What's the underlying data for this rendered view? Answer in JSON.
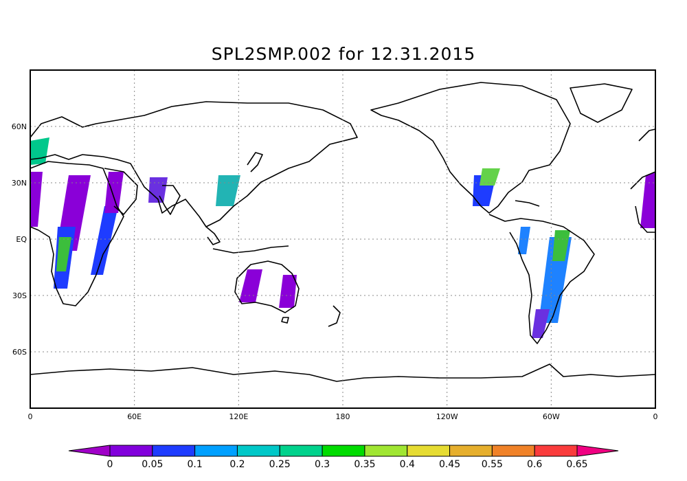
{
  "title": "SPL2SMP.002 for 12.31.2015",
  "map": {
    "lon_ticks": [
      {
        "lon": 0,
        "label": "0"
      },
      {
        "lon": 60,
        "label": "60E"
      },
      {
        "lon": 120,
        "label": "120E"
      },
      {
        "lon": 180,
        "label": "180"
      },
      {
        "lon": 240,
        "label": "120W"
      },
      {
        "lon": 300,
        "label": "60W"
      },
      {
        "lon": 360,
        "label": "0"
      }
    ],
    "lat_ticks": [
      {
        "lat": 60,
        "label": "60N"
      },
      {
        "lat": 30,
        "label": "30N"
      },
      {
        "lat": 0,
        "label": "EQ"
      },
      {
        "lat": -30,
        "label": "30S"
      },
      {
        "lat": -60,
        "label": "60S"
      }
    ],
    "lon_range": [
      0,
      360
    ],
    "lat_range": [
      -90,
      90
    ],
    "grid": true
  },
  "colorbar": {
    "labels": [
      "0",
      "0.05",
      "0.1",
      "0.2",
      "0.25",
      "0.3",
      "0.35",
      "0.4",
      "0.45",
      "0.55",
      "0.6",
      "0.65"
    ],
    "colors": [
      "#a000c8",
      "#8200dc",
      "#1e3cff",
      "#00a0ff",
      "#00c8c8",
      "#00d28c",
      "#00dc00",
      "#a0e632",
      "#e6dc32",
      "#e6af2d",
      "#f08228",
      "#fa3c3c",
      "#f00082"
    ]
  }
}
